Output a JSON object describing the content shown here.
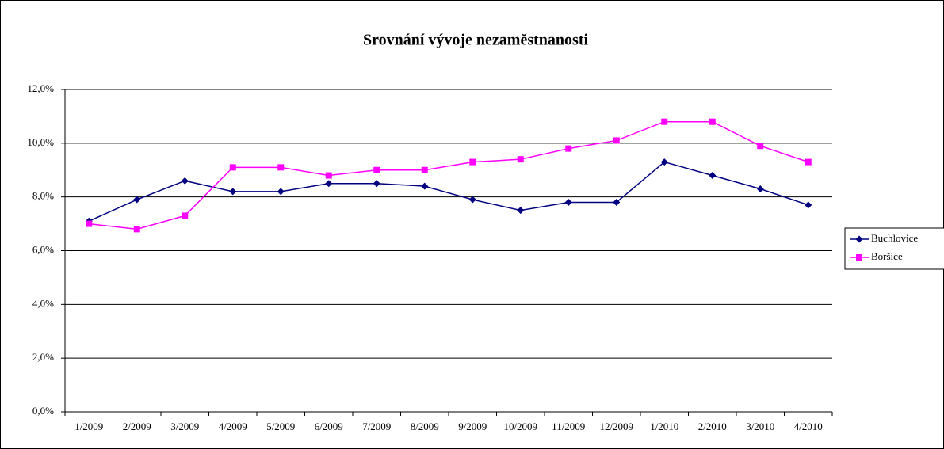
{
  "chart_data": {
    "type": "line",
    "title": "Srovnání vývoje nezaměstnanosti",
    "categories": [
      "1/2009",
      "2/2009",
      "3/2009",
      "4/2009",
      "5/2009",
      "6/2009",
      "7/2009",
      "8/2009",
      "9/2009",
      "10/2009",
      "11/2009",
      "12/2009",
      "1/2010",
      "2/2010",
      "3/2010",
      "4/2010"
    ],
    "series": [
      {
        "name": "Buchlovice",
        "color": "#000080",
        "marker": "diamond",
        "values": [
          7.1,
          7.9,
          8.6,
          8.2,
          8.2,
          8.5,
          8.5,
          8.4,
          7.9,
          7.5,
          7.8,
          7.8,
          9.3,
          8.8,
          8.3,
          7.7
        ]
      },
      {
        "name": "Boršice",
        "color": "#ff00ff",
        "marker": "square",
        "values": [
          7.0,
          6.8,
          7.3,
          9.1,
          9.1,
          8.8,
          9.0,
          9.0,
          9.3,
          9.4,
          9.8,
          10.1,
          10.8,
          10.8,
          9.9,
          9.3
        ]
      }
    ],
    "ylim": [
      0,
      12
    ],
    "yticks": [
      {
        "value": 0,
        "label": "0,0%"
      },
      {
        "value": 2,
        "label": "2,0%"
      },
      {
        "value": 4,
        "label": "4,0%"
      },
      {
        "value": 6,
        "label": "6,0%"
      },
      {
        "value": 8,
        "label": "8,0%"
      },
      {
        "value": 10,
        "label": "10,0%"
      },
      {
        "value": 12,
        "label": "12,0%"
      }
    ],
    "grid": true,
    "legend": "right"
  }
}
